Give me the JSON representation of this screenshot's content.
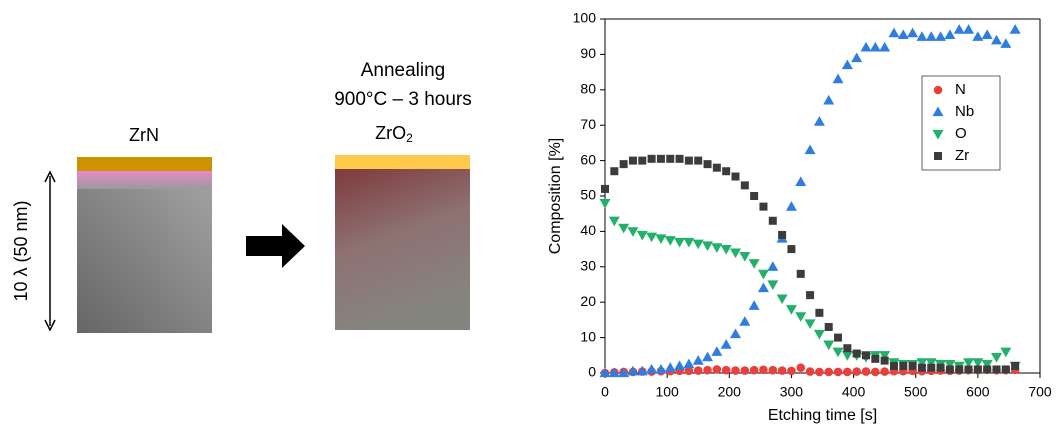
{
  "diagram": {
    "before_label": "ZrN",
    "annealing": "Annealing",
    "conditions": "900°C – 3 hours",
    "after_label": "ZrO",
    "after_subscript": "2",
    "thickness": "10 λ (50 nm)"
  },
  "chart_data": {
    "type": "scatter",
    "xlabel": "Etching time [s]",
    "ylabel": "Composition [%]",
    "x": [
      0,
      15,
      30,
      45,
      60,
      75,
      90,
      105,
      120,
      135,
      150,
      165,
      180,
      195,
      210,
      225,
      240,
      255,
      270,
      285,
      300,
      315,
      330,
      345,
      360,
      375,
      390,
      405,
      420,
      435,
      450,
      465,
      480,
      495,
      510,
      525,
      540,
      555,
      570,
      585,
      600,
      615,
      630,
      645,
      660
    ],
    "series": [
      {
        "name": "N",
        "color": "#e8403c",
        "marker": "circle",
        "values": [
          0,
          0.2,
          0.3,
          0.3,
          0.4,
          0.4,
          0.5,
          0.5,
          0.6,
          0.6,
          0.7,
          0.8,
          1,
          0.8,
          0.7,
          0.7,
          0.8,
          0.9,
          0.8,
          0.7,
          0.6,
          1.5,
          0.4,
          0.3,
          0.3,
          0.3,
          0.3,
          0.4,
          0.4,
          0.3,
          0.4,
          0.5,
          0.5,
          0.6,
          0.5,
          0.6,
          0.7,
          0.6,
          0.7,
          0.8,
          0.8,
          0.9,
          0.8,
          0.8,
          0.9
        ]
      },
      {
        "name": "Nb",
        "color": "#2f7ddf",
        "marker": "triangle-up",
        "values": [
          0,
          0,
          0,
          0.5,
          0.5,
          1,
          1,
          1.5,
          2,
          2.5,
          3.5,
          4.5,
          6,
          8,
          11,
          14.5,
          19,
          24,
          30,
          38,
          47,
          54,
          63,
          71,
          77,
          83,
          87,
          89,
          92,
          92,
          92,
          96,
          95.5,
          96,
          95,
          95,
          95,
          95.5,
          97,
          97,
          95,
          95.5,
          94,
          93,
          97
        ]
      },
      {
        "name": "O",
        "color": "#22b06a",
        "marker": "triangle-down",
        "values": [
          48,
          43,
          41,
          40,
          39,
          38.5,
          38,
          37.5,
          37,
          37,
          36.5,
          36,
          35.5,
          35,
          34,
          33,
          31,
          28,
          25,
          21,
          18,
          16,
          14,
          11,
          8,
          6,
          5,
          5,
          4.5,
          5,
          5,
          3,
          2.5,
          2.5,
          3,
          3,
          2.5,
          2.5,
          2,
          3,
          3,
          2.5,
          4.5,
          6,
          2
        ]
      },
      {
        "name": "Zr",
        "color": "#3c3c3c",
        "marker": "square",
        "values": [
          52,
          57,
          59,
          60,
          60,
          60.5,
          60.5,
          60.5,
          60.5,
          60,
          60,
          59,
          58,
          57,
          55.5,
          53,
          50,
          47,
          43,
          39,
          35,
          28,
          22,
          17,
          13,
          10,
          7,
          5.5,
          5,
          4,
          3.5,
          2,
          2,
          2,
          1.5,
          1.5,
          1.5,
          1,
          1,
          1,
          1,
          1,
          1,
          1,
          2
        ]
      }
    ],
    "xlim": [
      0,
      700
    ],
    "xticks": [
      0,
      100,
      200,
      300,
      400,
      500,
      600,
      700
    ],
    "ylim": [
      0,
      100
    ],
    "yticks": [
      0,
      10,
      20,
      30,
      40,
      50,
      60,
      70,
      80,
      90,
      100
    ],
    "legend": "upper right"
  }
}
